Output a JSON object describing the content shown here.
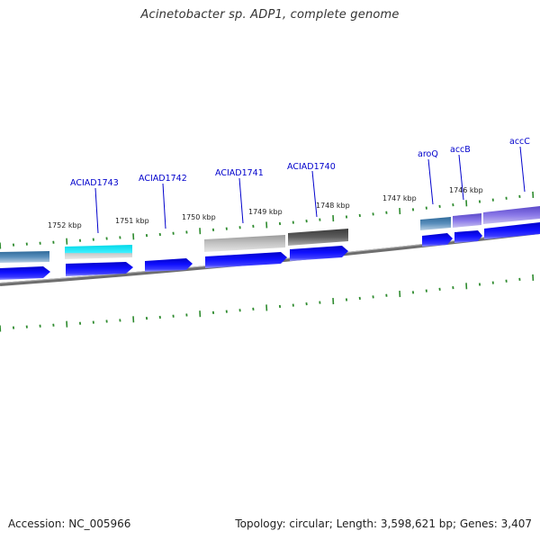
{
  "title": "Acinetobacter sp. ADP1, complete genome",
  "footer": {
    "accession": "Accession: NC_005966",
    "summary": "Topology: circular; Length: 3,598,621 bp; Genes: 3,407"
  },
  "colors": {
    "backbone": "#808080",
    "cds": "#0000ee",
    "tick": "#2e8b2e",
    "label": "#0000cc"
  },
  "scale_ticks": [
    "1752 kbp",
    "1751 kbp",
    "1750 kbp",
    "1749 kbp",
    "1748 kbp",
    "1747 kbp",
    "1746 kbp"
  ],
  "gene_labels": [
    "ACIAD1743",
    "ACIAD1742",
    "ACIAD1741",
    "ACIAD1740",
    "aroQ",
    "accB",
    "accC"
  ]
}
